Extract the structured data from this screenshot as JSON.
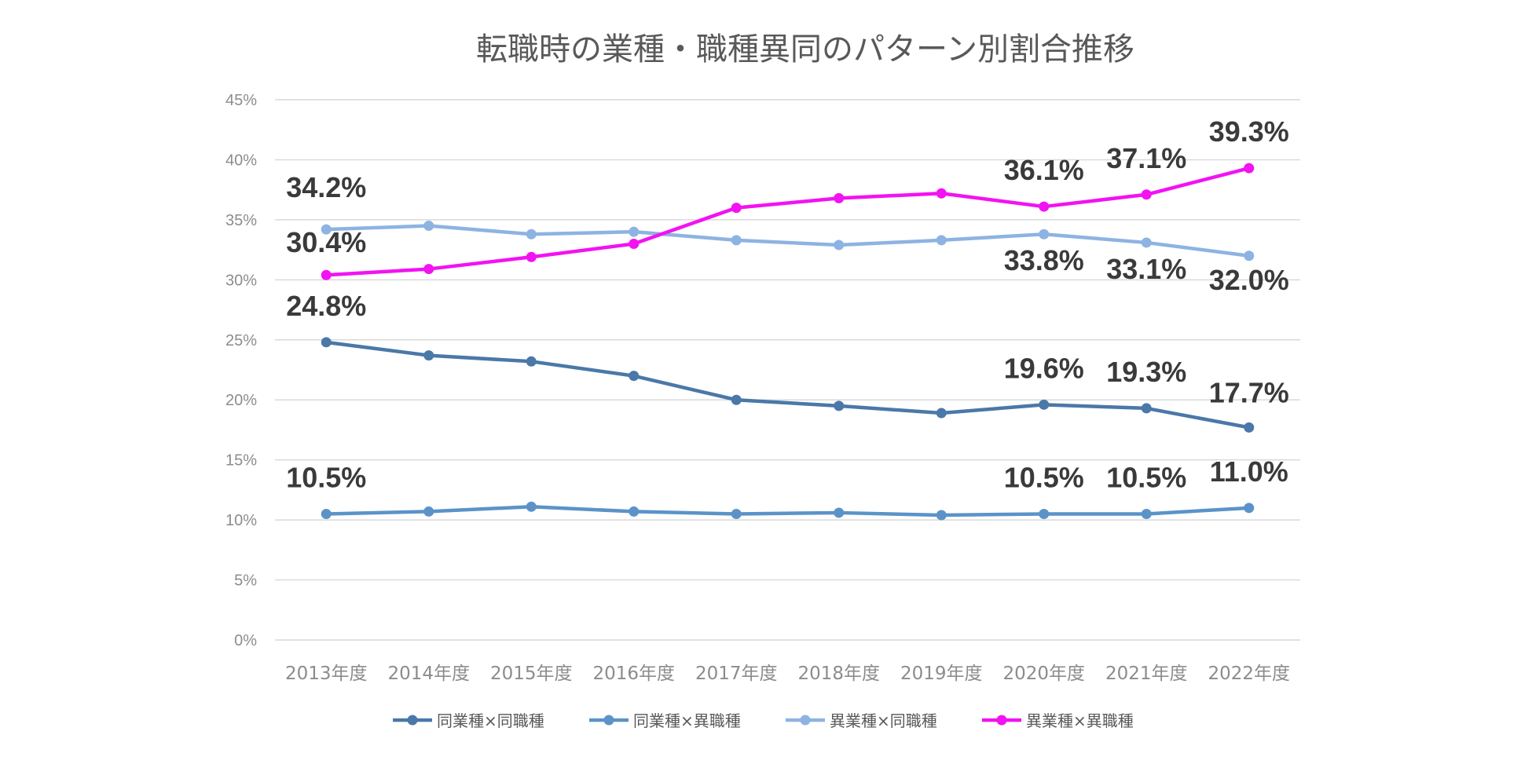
{
  "chart_data": {
    "type": "line",
    "title": "転職時の業種・職種異同のパターン別割合推移",
    "xlabel": "",
    "ylabel": "",
    "categories": [
      "2013年度",
      "2014年度",
      "2015年度",
      "2016年度",
      "2017年度",
      "2018年度",
      "2019年度",
      "2020年度",
      "2021年度",
      "2022年度"
    ],
    "ylim": [
      0,
      45
    ],
    "yticks": [
      "0%",
      "5%",
      "10%",
      "15%",
      "20%",
      "25%",
      "30%",
      "35%",
      "40%",
      "45%"
    ],
    "grid": true,
    "legend_position": "bottom",
    "series": [
      {
        "name": "同業種×同職種",
        "color": "#4a78a8",
        "values": [
          24.8,
          23.7,
          23.2,
          22.0,
          20.0,
          19.5,
          18.9,
          19.6,
          19.3,
          17.7
        ],
        "labels": {
          "0": "24.8%",
          "7": "19.6%",
          "8": "19.3%",
          "9": "17.7%"
        }
      },
      {
        "name": "同業種×異職種",
        "color": "#5b93c8",
        "values": [
          10.5,
          10.7,
          11.1,
          10.7,
          10.5,
          10.6,
          10.4,
          10.5,
          10.5,
          11.0
        ],
        "labels": {
          "0": "10.5%",
          "7": "10.5%",
          "8": "10.5%",
          "9": "11.0%"
        }
      },
      {
        "name": "異業種×同職種",
        "color": "#8db3e2",
        "values": [
          34.2,
          34.5,
          33.8,
          34.0,
          33.3,
          32.9,
          33.3,
          33.8,
          33.1,
          32.0
        ],
        "labels": {
          "0": "34.2%",
          "7": "33.8%",
          "8": "33.1%",
          "9": "32.0%"
        }
      },
      {
        "name": "異業種×異職種",
        "color": "#f212f2",
        "values": [
          30.4,
          30.9,
          31.9,
          33.0,
          36.0,
          36.8,
          37.2,
          36.1,
          37.1,
          39.3
        ],
        "labels": {
          "0": "30.4%",
          "7": "36.1%",
          "8": "37.1%",
          "9": "39.3%"
        }
      }
    ]
  }
}
